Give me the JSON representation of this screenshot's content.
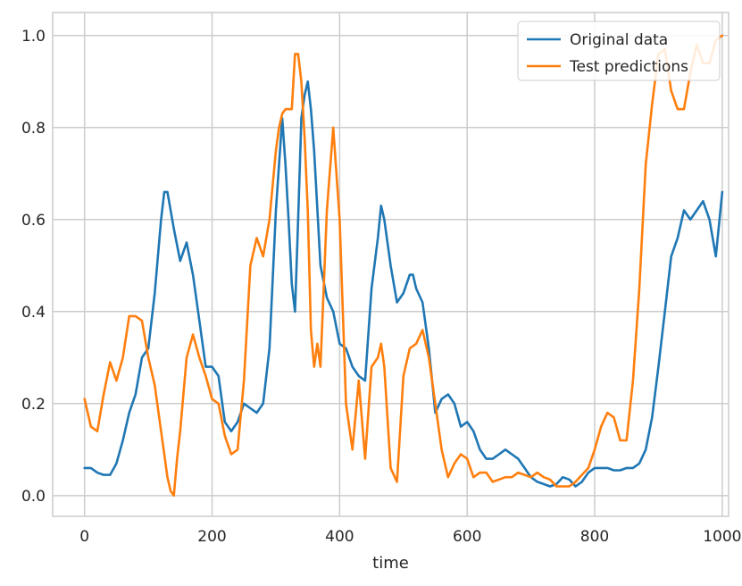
{
  "chart_data": {
    "type": "line",
    "title": "",
    "xlabel": "time",
    "ylabel": "",
    "xlim": [
      -50,
      1010
    ],
    "ylim": [
      -0.045,
      1.05
    ],
    "x_ticks": [
      0,
      200,
      400,
      600,
      800,
      1000
    ],
    "y_ticks": [
      0.0,
      0.2,
      0.4,
      0.6,
      0.8,
      1.0
    ],
    "x_tick_labels": [
      "0",
      "200",
      "400",
      "600",
      "800",
      "1000"
    ],
    "y_tick_labels": [
      "0.0",
      "0.2",
      "0.4",
      "0.6",
      "0.8",
      "1.0"
    ],
    "grid": true,
    "legend_position": "top-right",
    "colors": {
      "grid": "#cccccc",
      "spine": "#cccccc",
      "text": "#262626"
    },
    "series": [
      {
        "name": "Original data",
        "color": "#1f77b4",
        "x": [
          0,
          10,
          20,
          30,
          40,
          50,
          60,
          70,
          80,
          90,
          100,
          110,
          120,
          125,
          130,
          140,
          150,
          160,
          170,
          180,
          190,
          200,
          210,
          220,
          230,
          240,
          250,
          260,
          270,
          280,
          290,
          300,
          305,
          310,
          315,
          320,
          325,
          330,
          335,
          340,
          345,
          350,
          355,
          360,
          370,
          380,
          390,
          400,
          410,
          420,
          430,
          440,
          450,
          460,
          465,
          470,
          480,
          490,
          500,
          510,
          515,
          520,
          530,
          540,
          550,
          560,
          570,
          580,
          590,
          600,
          610,
          620,
          630,
          640,
          650,
          660,
          670,
          680,
          690,
          700,
          710,
          720,
          730,
          740,
          750,
          760,
          770,
          780,
          790,
          800,
          810,
          820,
          830,
          840,
          850,
          860,
          870,
          880,
          890,
          900,
          910,
          920,
          930,
          940,
          950,
          960,
          970,
          980,
          990,
          1000
        ],
        "y": [
          0.06,
          0.06,
          0.05,
          0.045,
          0.045,
          0.07,
          0.12,
          0.18,
          0.22,
          0.3,
          0.32,
          0.44,
          0.6,
          0.66,
          0.66,
          0.58,
          0.51,
          0.55,
          0.48,
          0.38,
          0.28,
          0.28,
          0.26,
          0.16,
          0.14,
          0.16,
          0.2,
          0.19,
          0.18,
          0.2,
          0.32,
          0.62,
          0.72,
          0.82,
          0.72,
          0.6,
          0.46,
          0.4,
          0.6,
          0.82,
          0.87,
          0.9,
          0.84,
          0.75,
          0.5,
          0.43,
          0.4,
          0.33,
          0.32,
          0.28,
          0.26,
          0.25,
          0.45,
          0.56,
          0.63,
          0.6,
          0.5,
          0.42,
          0.44,
          0.48,
          0.48,
          0.45,
          0.42,
          0.32,
          0.18,
          0.21,
          0.22,
          0.2,
          0.15,
          0.16,
          0.14,
          0.1,
          0.08,
          0.08,
          0.09,
          0.1,
          0.09,
          0.08,
          0.06,
          0.04,
          0.03,
          0.025,
          0.02,
          0.025,
          0.04,
          0.035,
          0.02,
          0.03,
          0.05,
          0.06,
          0.06,
          0.06,
          0.055,
          0.055,
          0.06,
          0.06,
          0.07,
          0.1,
          0.17,
          0.28,
          0.4,
          0.52,
          0.56,
          0.62,
          0.6,
          0.62,
          0.64,
          0.6,
          0.52,
          0.66
        ]
      },
      {
        "name": "Test predictions",
        "color": "#ff7f0e",
        "x": [
          0,
          10,
          20,
          30,
          40,
          50,
          60,
          70,
          80,
          90,
          100,
          110,
          120,
          125,
          130,
          135,
          140,
          145,
          150,
          160,
          170,
          180,
          190,
          200,
          210,
          220,
          230,
          240,
          250,
          260,
          270,
          280,
          290,
          300,
          305,
          310,
          315,
          320,
          325,
          330,
          335,
          340,
          345,
          350,
          355,
          360,
          365,
          370,
          380,
          390,
          400,
          410,
          420,
          430,
          440,
          450,
          460,
          465,
          470,
          480,
          490,
          500,
          510,
          520,
          530,
          540,
          550,
          560,
          570,
          580,
          590,
          600,
          610,
          620,
          630,
          640,
          650,
          660,
          670,
          680,
          690,
          700,
          710,
          720,
          730,
          740,
          750,
          760,
          770,
          780,
          790,
          800,
          810,
          820,
          830,
          840,
          850,
          860,
          870,
          880,
          890,
          900,
          910,
          920,
          930,
          940,
          950,
          960,
          970,
          980,
          990,
          1000
        ],
        "y": [
          0.21,
          0.15,
          0.14,
          0.22,
          0.29,
          0.25,
          0.3,
          0.39,
          0.39,
          0.38,
          0.3,
          0.24,
          0.14,
          0.09,
          0.04,
          0.01,
          0.0,
          0.08,
          0.14,
          0.3,
          0.35,
          0.3,
          0.26,
          0.21,
          0.2,
          0.13,
          0.09,
          0.1,
          0.25,
          0.5,
          0.56,
          0.52,
          0.6,
          0.75,
          0.8,
          0.83,
          0.84,
          0.84,
          0.84,
          0.96,
          0.96,
          0.9,
          0.78,
          0.62,
          0.36,
          0.28,
          0.33,
          0.28,
          0.62,
          0.8,
          0.6,
          0.2,
          0.1,
          0.25,
          0.08,
          0.28,
          0.3,
          0.33,
          0.28,
          0.06,
          0.03,
          0.26,
          0.32,
          0.33,
          0.36,
          0.3,
          0.2,
          0.1,
          0.04,
          0.07,
          0.09,
          0.08,
          0.04,
          0.05,
          0.05,
          0.03,
          0.035,
          0.04,
          0.04,
          0.05,
          0.045,
          0.04,
          0.05,
          0.04,
          0.035,
          0.02,
          0.02,
          0.02,
          0.03,
          0.045,
          0.06,
          0.1,
          0.15,
          0.18,
          0.17,
          0.12,
          0.12,
          0.25,
          0.45,
          0.72,
          0.85,
          0.96,
          0.97,
          0.88,
          0.84,
          0.84,
          0.92,
          0.98,
          0.94,
          0.94,
          0.99,
          1.0
        ]
      }
    ]
  }
}
